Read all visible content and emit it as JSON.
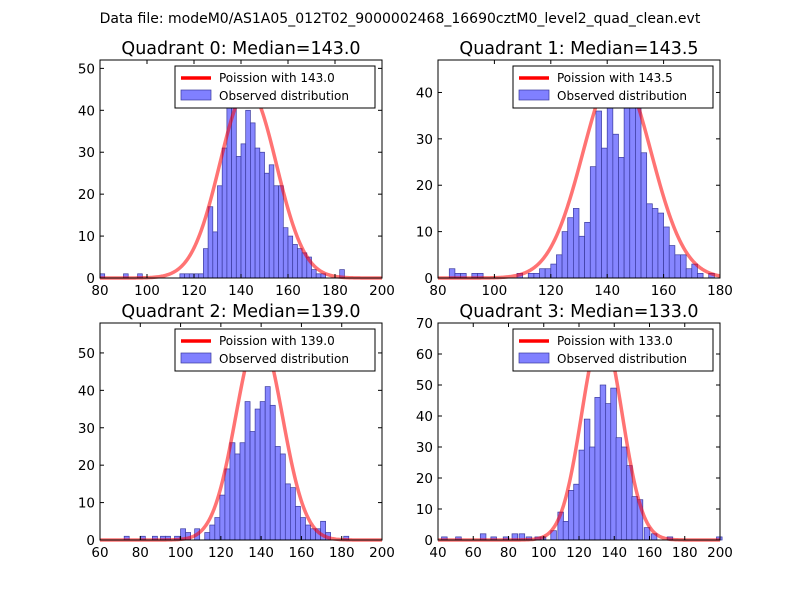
{
  "suptitle": "Data file: modeM0/AS1A05_012T02_9000002468_16690cztM0_level2_quad_clean.evt",
  "colors": {
    "bar_fill": "#8080ff",
    "bar_edge": "#3a3a9e",
    "curve": "#ff0000",
    "axis": "#000000"
  },
  "chart_data": [
    {
      "type": "bar",
      "title": "Quadrant 0: Median=143.0",
      "xlabel": "",
      "ylabel": "",
      "xlim": [
        80,
        200
      ],
      "ylim": [
        0,
        52
      ],
      "xticks": [
        80,
        100,
        120,
        140,
        160,
        180,
        200
      ],
      "yticks": [
        0,
        10,
        20,
        30,
        40,
        50
      ],
      "legend": {
        "placement": "top-right",
        "curve_label": "Poission with 143.0",
        "bars_label": "Observed distribution"
      },
      "bin_width": 2,
      "bins": [
        {
          "x": 80,
          "y": 1
        },
        {
          "x": 90,
          "y": 1
        },
        {
          "x": 96,
          "y": 1
        },
        {
          "x": 114,
          "y": 1
        },
        {
          "x": 116,
          "y": 1
        },
        {
          "x": 118,
          "y": 1
        },
        {
          "x": 120,
          "y": 1
        },
        {
          "x": 122,
          "y": 1
        },
        {
          "x": 124,
          "y": 7
        },
        {
          "x": 126,
          "y": 17
        },
        {
          "x": 128,
          "y": 11
        },
        {
          "x": 130,
          "y": 22
        },
        {
          "x": 132,
          "y": 31
        },
        {
          "x": 134,
          "y": 43
        },
        {
          "x": 136,
          "y": 49
        },
        {
          "x": 138,
          "y": 29
        },
        {
          "x": 140,
          "y": 32
        },
        {
          "x": 142,
          "y": 40
        },
        {
          "x": 144,
          "y": 37
        },
        {
          "x": 146,
          "y": 31
        },
        {
          "x": 148,
          "y": 30
        },
        {
          "x": 150,
          "y": 25
        },
        {
          "x": 152,
          "y": 27
        },
        {
          "x": 154,
          "y": 22
        },
        {
          "x": 156,
          "y": 22
        },
        {
          "x": 158,
          "y": 12
        },
        {
          "x": 160,
          "y": 10
        },
        {
          "x": 162,
          "y": 8
        },
        {
          "x": 164,
          "y": 7
        },
        {
          "x": 166,
          "y": 6
        },
        {
          "x": 168,
          "y": 5
        },
        {
          "x": 170,
          "y": 2
        },
        {
          "x": 172,
          "y": 1
        },
        {
          "x": 174,
          "y": 1
        },
        {
          "x": 182,
          "y": 2
        }
      ],
      "curve": {
        "mean": 143.0,
        "peak": 45,
        "sigma": 12
      }
    },
    {
      "type": "bar",
      "title": "Quadrant 1: Median=143.5",
      "xlabel": "",
      "ylabel": "",
      "xlim": [
        80,
        180
      ],
      "ylim": [
        0,
        47
      ],
      "xticks": [
        80,
        100,
        120,
        140,
        160,
        180
      ],
      "yticks": [
        0,
        10,
        20,
        30,
        40
      ],
      "legend": {
        "placement": "top-right",
        "curve_label": "Poission with 143.5",
        "bars_label": "Observed distribution"
      },
      "bin_width": 2,
      "bins": [
        {
          "x": 84,
          "y": 2
        },
        {
          "x": 86,
          "y": 1
        },
        {
          "x": 88,
          "y": 1
        },
        {
          "x": 92,
          "y": 1
        },
        {
          "x": 94,
          "y": 1
        },
        {
          "x": 108,
          "y": 1
        },
        {
          "x": 112,
          "y": 1
        },
        {
          "x": 114,
          "y": 1
        },
        {
          "x": 116,
          "y": 2
        },
        {
          "x": 118,
          "y": 2
        },
        {
          "x": 120,
          "y": 3
        },
        {
          "x": 122,
          "y": 5
        },
        {
          "x": 124,
          "y": 10
        },
        {
          "x": 126,
          "y": 13
        },
        {
          "x": 128,
          "y": 15
        },
        {
          "x": 130,
          "y": 9
        },
        {
          "x": 132,
          "y": 12
        },
        {
          "x": 134,
          "y": 24
        },
        {
          "x": 136,
          "y": 36
        },
        {
          "x": 138,
          "y": 28
        },
        {
          "x": 140,
          "y": 38
        },
        {
          "x": 142,
          "y": 31
        },
        {
          "x": 144,
          "y": 26
        },
        {
          "x": 146,
          "y": 44
        },
        {
          "x": 148,
          "y": 40
        },
        {
          "x": 150,
          "y": 38
        },
        {
          "x": 152,
          "y": 27
        },
        {
          "x": 154,
          "y": 16
        },
        {
          "x": 156,
          "y": 15
        },
        {
          "x": 158,
          "y": 14
        },
        {
          "x": 160,
          "y": 11
        },
        {
          "x": 162,
          "y": 7
        },
        {
          "x": 164,
          "y": 5
        },
        {
          "x": 166,
          "y": 5
        },
        {
          "x": 168,
          "y": 2
        },
        {
          "x": 170,
          "y": 3
        },
        {
          "x": 172,
          "y": 1
        },
        {
          "x": 176,
          "y": 1
        }
      ],
      "curve": {
        "mean": 143.5,
        "peak": 45,
        "sigma": 12
      }
    },
    {
      "type": "bar",
      "title": "Quadrant 2: Median=139.0",
      "xlabel": "",
      "ylabel": "",
      "xlim": [
        60,
        200
      ],
      "ylim": [
        0,
        58
      ],
      "xticks": [
        60,
        80,
        100,
        120,
        140,
        160,
        180,
        200
      ],
      "yticks": [
        0,
        10,
        20,
        30,
        40,
        50
      ],
      "legend": {
        "placement": "top-right",
        "curve_label": "Poission with 139.0",
        "bars_label": "Observed distribution"
      },
      "bin_width": 2.5,
      "bins": [
        {
          "x": 72,
          "y": 1
        },
        {
          "x": 80,
          "y": 1
        },
        {
          "x": 86,
          "y": 1
        },
        {
          "x": 90,
          "y": 1
        },
        {
          "x": 92.5,
          "y": 1
        },
        {
          "x": 97,
          "y": 1
        },
        {
          "x": 100,
          "y": 3
        },
        {
          "x": 102.5,
          "y": 2
        },
        {
          "x": 107,
          "y": 3
        },
        {
          "x": 112,
          "y": 2
        },
        {
          "x": 114.5,
          "y": 4
        },
        {
          "x": 117,
          "y": 6
        },
        {
          "x": 119.5,
          "y": 12
        },
        {
          "x": 122,
          "y": 19
        },
        {
          "x": 124.5,
          "y": 26
        },
        {
          "x": 127,
          "y": 23
        },
        {
          "x": 129.5,
          "y": 26
        },
        {
          "x": 132,
          "y": 37
        },
        {
          "x": 134.5,
          "y": 29
        },
        {
          "x": 137,
          "y": 35
        },
        {
          "x": 139.5,
          "y": 37
        },
        {
          "x": 142,
          "y": 41
        },
        {
          "x": 144.5,
          "y": 36
        },
        {
          "x": 147,
          "y": 25
        },
        {
          "x": 149.5,
          "y": 23
        },
        {
          "x": 152,
          "y": 15
        },
        {
          "x": 154.5,
          "y": 14
        },
        {
          "x": 157,
          "y": 9
        },
        {
          "x": 159.5,
          "y": 6
        },
        {
          "x": 162,
          "y": 4
        },
        {
          "x": 164.5,
          "y": 3
        },
        {
          "x": 167,
          "y": 3
        },
        {
          "x": 169.5,
          "y": 5
        },
        {
          "x": 172,
          "y": 2
        },
        {
          "x": 181,
          "y": 1
        }
      ],
      "curve": {
        "mean": 139.0,
        "peak": 55,
        "sigma": 11.5
      }
    },
    {
      "type": "bar",
      "title": "Quadrant 3: Median=133.0",
      "xlabel": "",
      "ylabel": "",
      "xlim": [
        40,
        200
      ],
      "ylim": [
        0,
        70
      ],
      "xticks": [
        40,
        60,
        80,
        100,
        120,
        140,
        160,
        180,
        200
      ],
      "yticks": [
        0,
        10,
        20,
        30,
        40,
        50,
        60,
        70
      ],
      "legend": {
        "placement": "top-right",
        "curve_label": "Poission with 133.0",
        "bars_label": "Observed distribution"
      },
      "bin_width": 3.2,
      "bins": [
        {
          "x": 42,
          "y": 1
        },
        {
          "x": 50,
          "y": 1
        },
        {
          "x": 64,
          "y": 2
        },
        {
          "x": 70,
          "y": 1
        },
        {
          "x": 77,
          "y": 1
        },
        {
          "x": 82,
          "y": 2
        },
        {
          "x": 86,
          "y": 2
        },
        {
          "x": 90,
          "y": 1
        },
        {
          "x": 95,
          "y": 1
        },
        {
          "x": 98,
          "y": 1
        },
        {
          "x": 104,
          "y": 3
        },
        {
          "x": 108,
          "y": 9
        },
        {
          "x": 111,
          "y": 6
        },
        {
          "x": 114,
          "y": 16
        },
        {
          "x": 117,
          "y": 18
        },
        {
          "x": 120,
          "y": 29
        },
        {
          "x": 123,
          "y": 39
        },
        {
          "x": 126,
          "y": 30
        },
        {
          "x": 129,
          "y": 46
        },
        {
          "x": 132,
          "y": 50
        },
        {
          "x": 135,
          "y": 44
        },
        {
          "x": 138,
          "y": 49
        },
        {
          "x": 141,
          "y": 33
        },
        {
          "x": 144,
          "y": 30
        },
        {
          "x": 147,
          "y": 24
        },
        {
          "x": 150,
          "y": 14
        },
        {
          "x": 153,
          "y": 13
        },
        {
          "x": 157,
          "y": 4
        },
        {
          "x": 161,
          "y": 2
        },
        {
          "x": 170,
          "y": 1
        },
        {
          "x": 198,
          "y": 1
        }
      ],
      "curve": {
        "mean": 133.0,
        "peak": 67,
        "sigma": 11.5
      }
    }
  ]
}
